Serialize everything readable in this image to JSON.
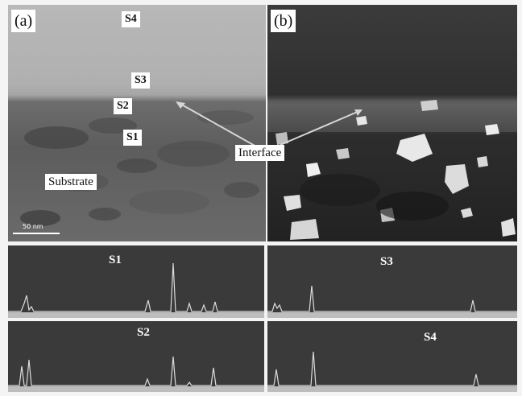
{
  "panel_a": {
    "letter": "(a)",
    "labels": {
      "s4": "S4",
      "s3": "S3",
      "s2": "S2",
      "s1": "S1",
      "substrate": "Substrate"
    },
    "scale": "50 nm"
  },
  "panel_b": {
    "letter": "(b)"
  },
  "interface_label": "Interface",
  "spectra": {
    "s1": "S1",
    "s2": "S2",
    "s3": "S3",
    "s4": "S4"
  },
  "colors": {
    "tem_light": "#b0b0b0",
    "tem_dark": "#2f2f2f",
    "spectrum_bg": "#3a3a3a",
    "label_bg": "#ffffff"
  }
}
